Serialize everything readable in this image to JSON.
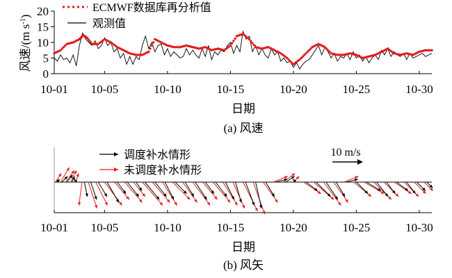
{
  "chart_data": [
    {
      "panel": "(a)",
      "type": "line",
      "caption": "(a) 风速",
      "xlabel": "日期",
      "ylabel": "风速/(m s⁻¹)",
      "ylabel_main": "风速/(m s",
      "ylabel_sup": "-1",
      "ylabel_close": ")",
      "xlim": [
        1,
        31
      ],
      "ylim": [
        0,
        20
      ],
      "xticks": [
        "10-01",
        "10-05",
        "10-10",
        "10-15",
        "10-20",
        "10-25",
        "10-30"
      ],
      "xtick_days": [
        1,
        5,
        10,
        15,
        20,
        25,
        30
      ],
      "yticks": [
        0,
        5,
        10,
        15,
        20
      ],
      "grid": false,
      "legend_position": "top-left",
      "x_unit": "day of October",
      "series": [
        {
          "name": "ECMWF数据库再分析值",
          "style": "dotted",
          "color": "#e11d1d",
          "x": [
            1,
            1.5,
            2,
            2.5,
            3,
            3.3,
            3.6,
            4,
            4.5,
            5,
            5.5,
            6,
            6.5,
            7,
            7.5,
            8,
            8.5,
            9,
            9.5,
            10,
            10.5,
            11,
            11.5,
            12,
            12.5,
            13,
            13.5,
            14,
            14.5,
            15,
            15.5,
            16,
            16.5,
            17,
            17.5,
            18,
            18.5,
            19,
            19.5,
            20,
            20.5,
            21,
            21.5,
            22,
            22.5,
            23,
            23.5,
            24,
            24.5,
            25,
            25.5,
            26,
            26.5,
            27,
            27.5,
            28,
            28.5,
            29,
            29.5,
            30,
            30.5,
            31
          ],
          "y": [
            6.5,
            7.5,
            9.5,
            10,
            11,
            12.3,
            11.5,
            9.5,
            9.5,
            11,
            10,
            8.5,
            7.5,
            6.5,
            6,
            6,
            7,
            11,
            10,
            9,
            8.5,
            8.5,
            9,
            8.5,
            8,
            8.5,
            7.5,
            8,
            7.5,
            9,
            12,
            12.7,
            11,
            8.5,
            8,
            8.5,
            7.5,
            6.5,
            5,
            3,
            4.5,
            6.5,
            8.5,
            9.5,
            8.5,
            6.5,
            6,
            6,
            6.5,
            6,
            5,
            5.5,
            6,
            7,
            8,
            6.5,
            6,
            6.5,
            6,
            7,
            7.5,
            7.5
          ]
        },
        {
          "name": "观测值",
          "style": "solid",
          "color": "#000000",
          "x": [
            1,
            1.25,
            1.5,
            1.75,
            2,
            2.25,
            2.5,
            2.75,
            3,
            3.25,
            3.5,
            3.75,
            4,
            4.25,
            4.5,
            4.75,
            5,
            5.25,
            5.5,
            5.75,
            6,
            6.25,
            6.5,
            6.75,
            7,
            7.25,
            7.5,
            7.75,
            8,
            8.25,
            8.5,
            8.75,
            9,
            9.25,
            9.5,
            9.75,
            10,
            10.25,
            10.5,
            10.75,
            11,
            11.25,
            11.5,
            11.75,
            12,
            12.25,
            12.5,
            12.75,
            13,
            13.25,
            13.5,
            13.75,
            14,
            14.25,
            14.5,
            14.75,
            15,
            15.25,
            15.5,
            15.75,
            16,
            16.25,
            16.5,
            16.75,
            17,
            17.25,
            17.5,
            17.75,
            18,
            18.25,
            18.5,
            18.75,
            19,
            19.25,
            19.5,
            19.75,
            20,
            20.25,
            20.5,
            20.75,
            21,
            21.25,
            21.5,
            21.75,
            22,
            22.25,
            22.5,
            22.75,
            23,
            23.25,
            23.5,
            23.75,
            24,
            24.25,
            24.5,
            24.75,
            25,
            25.25,
            25.5,
            25.75,
            26,
            26.25,
            26.5,
            26.75,
            27,
            27.25,
            27.5,
            27.75,
            28,
            28.25,
            28.5,
            28.75,
            29,
            29.25,
            29.5,
            29.75,
            30,
            30.25,
            30.5,
            30.75,
            31
          ],
          "y": [
            5,
            4,
            6,
            4.5,
            5,
            3.5,
            6,
            2.5,
            9,
            13,
            11,
            10,
            9,
            10.5,
            8,
            9,
            11.5,
            9,
            10,
            7,
            8,
            5,
            6.5,
            3,
            5.5,
            3,
            5.5,
            4.5,
            9,
            12,
            8,
            10,
            7,
            9,
            9.5,
            6,
            8,
            5.5,
            7,
            6,
            5,
            5.5,
            8,
            6,
            7.5,
            6,
            5,
            8,
            5.5,
            9,
            4.5,
            7,
            6,
            7.5,
            7,
            9,
            10,
            6.5,
            9,
            7,
            13.5,
            11,
            12,
            7,
            9,
            6,
            8,
            6,
            5,
            8,
            6,
            7,
            4,
            5,
            3.5,
            4,
            2,
            3.5,
            1.5,
            3,
            4,
            4.5,
            6,
            7.5,
            9,
            6,
            8.5,
            7,
            5,
            6.5,
            4,
            5.5,
            5,
            6.5,
            4.5,
            7,
            5,
            6,
            4,
            5.5,
            3.5,
            5,
            6,
            4.5,
            7.5,
            6,
            8,
            5.5,
            7,
            6,
            5.5,
            6.5,
            4.5,
            6.5,
            5,
            5.5,
            6,
            6.5,
            5.5,
            6,
            6.5
          ]
        }
      ]
    },
    {
      "panel": "(b)",
      "type": "vector",
      "caption": "(b) 风矢",
      "xlabel": "日期",
      "xlim": [
        1,
        31
      ],
      "xticks": [
        "10-01",
        "10-05",
        "10-10",
        "10-15",
        "10-20",
        "10-25",
        "10-30"
      ],
      "xtick_days": [
        1,
        5,
        10,
        15,
        20,
        25,
        30
      ],
      "reference_label": "10 m/s",
      "reference_speed": 10,
      "legend_position": "top-left",
      "x_unit": "day of October",
      "y_unit": "m/s",
      "series": [
        {
          "name": "调度补水情形",
          "color": "#000000",
          "vectors": [
            {
              "x": 1.2,
              "u": 1,
              "v": 1
            },
            {
              "x": 1.6,
              "u": 2,
              "v": 2
            },
            {
              "x": 2.0,
              "u": 2,
              "v": 2.5
            },
            {
              "x": 2.4,
              "u": 1,
              "v": 2
            },
            {
              "x": 2.8,
              "u": -1,
              "v": 1
            },
            {
              "x": 3.4,
              "u": 1,
              "v": -5
            },
            {
              "x": 3.9,
              "u": 2,
              "v": -6
            },
            {
              "x": 4.5,
              "u": 3,
              "v": -5
            },
            {
              "x": 5.2,
              "u": 4,
              "v": -7
            },
            {
              "x": 6.0,
              "u": 3,
              "v": -4
            },
            {
              "x": 6.8,
              "u": 4,
              "v": -5
            },
            {
              "x": 7.5,
              "u": 2,
              "v": -3
            },
            {
              "x": 8.2,
              "u": 5,
              "v": -6
            },
            {
              "x": 9.0,
              "u": 4,
              "v": -5
            },
            {
              "x": 9.8,
              "u": 3,
              "v": -6
            },
            {
              "x": 10.6,
              "u": 4,
              "v": -4
            },
            {
              "x": 11.4,
              "u": 3,
              "v": -5
            },
            {
              "x": 12.2,
              "u": 4,
              "v": -6
            },
            {
              "x": 13.0,
              "u": 3,
              "v": -4
            },
            {
              "x": 13.8,
              "u": 4,
              "v": -5
            },
            {
              "x": 14.6,
              "u": 3,
              "v": -6
            },
            {
              "x": 15.4,
              "u": 2,
              "v": -7
            },
            {
              "x": 16.2,
              "u": 3,
              "v": -8
            },
            {
              "x": 17.0,
              "u": 2,
              "v": -9
            },
            {
              "x": 17.8,
              "u": 3,
              "v": -5
            },
            {
              "x": 18.6,
              "u": 4,
              "v": 1
            },
            {
              "x": 19.4,
              "u": 3,
              "v": 2
            },
            {
              "x": 20.2,
              "u": -1,
              "v": 1
            },
            {
              "x": 21.0,
              "u": 4,
              "v": -3
            },
            {
              "x": 21.8,
              "u": 5,
              "v": -5
            },
            {
              "x": 22.6,
              "u": 4,
              "v": -6
            },
            {
              "x": 23.4,
              "u": 3,
              "v": -5
            },
            {
              "x": 24.2,
              "u": 4,
              "v": 1
            },
            {
              "x": 25.0,
              "u": 4,
              "v": -4
            },
            {
              "x": 25.8,
              "u": 5,
              "v": -3
            },
            {
              "x": 26.6,
              "u": 4,
              "v": -5
            },
            {
              "x": 27.4,
              "u": 3,
              "v": -4
            },
            {
              "x": 28.2,
              "u": 4,
              "v": -3
            },
            {
              "x": 29.0,
              "u": 3,
              "v": -4
            },
            {
              "x": 29.8,
              "u": 3,
              "v": -3
            },
            {
              "x": 30.6,
              "u": 2,
              "v": -2
            }
          ]
        },
        {
          "name": "未调度补水情形",
          "color": "#e11d1d",
          "vectors": [
            {
              "x": 1.1,
              "u": 2,
              "v": 3
            },
            {
              "x": 1.5,
              "u": 3,
              "v": 5
            },
            {
              "x": 1.9,
              "u": 3,
              "v": 4
            },
            {
              "x": 2.3,
              "u": 2,
              "v": 4
            },
            {
              "x": 2.7,
              "u": 1,
              "v": 3
            },
            {
              "x": 3.2,
              "u": -1,
              "v": -8
            },
            {
              "x": 3.7,
              "u": 3,
              "v": -9
            },
            {
              "x": 4.3,
              "u": 4,
              "v": -8
            },
            {
              "x": 5.0,
              "u": 6,
              "v": -8
            },
            {
              "x": 5.8,
              "u": 5,
              "v": -6
            },
            {
              "x": 6.6,
              "u": 6,
              "v": -7
            },
            {
              "x": 7.3,
              "u": 4,
              "v": -5
            },
            {
              "x": 8.0,
              "u": 7,
              "v": -8
            },
            {
              "x": 8.8,
              "u": 6,
              "v": -7
            },
            {
              "x": 9.6,
              "u": 5,
              "v": -8
            },
            {
              "x": 10.4,
              "u": 6,
              "v": -6
            },
            {
              "x": 11.2,
              "u": 5,
              "v": -7
            },
            {
              "x": 12.0,
              "u": 6,
              "v": -8
            },
            {
              "x": 12.8,
              "u": 5,
              "v": -6
            },
            {
              "x": 13.6,
              "u": 6,
              "v": -7
            },
            {
              "x": 14.4,
              "u": 5,
              "v": -8
            },
            {
              "x": 15.2,
              "u": 4,
              "v": -9
            },
            {
              "x": 16.0,
              "u": 5,
              "v": -10
            },
            {
              "x": 16.8,
              "u": 4,
              "v": -11
            },
            {
              "x": 17.6,
              "u": 5,
              "v": -7
            },
            {
              "x": 18.4,
              "u": 5,
              "v": 2
            },
            {
              "x": 19.2,
              "u": 4,
              "v": 3
            },
            {
              "x": 20.0,
              "u": 2,
              "v": 2
            },
            {
              "x": 20.8,
              "u": 6,
              "v": -4
            },
            {
              "x": 21.6,
              "u": 7,
              "v": -6
            },
            {
              "x": 22.4,
              "u": 6,
              "v": -8
            },
            {
              "x": 23.2,
              "u": 5,
              "v": -7
            },
            {
              "x": 24.0,
              "u": 5,
              "v": 2
            },
            {
              "x": 24.8,
              "u": 6,
              "v": -5
            },
            {
              "x": 25.6,
              "u": 7,
              "v": -4
            },
            {
              "x": 26.4,
              "u": 6,
              "v": -6
            },
            {
              "x": 27.2,
              "u": 5,
              "v": -5
            },
            {
              "x": 28.0,
              "u": 6,
              "v": -4
            },
            {
              "x": 28.8,
              "u": 5,
              "v": -5
            },
            {
              "x": 29.6,
              "u": 4,
              "v": -4
            },
            {
              "x": 30.4,
              "u": 3,
              "v": -3
            }
          ]
        }
      ]
    }
  ]
}
